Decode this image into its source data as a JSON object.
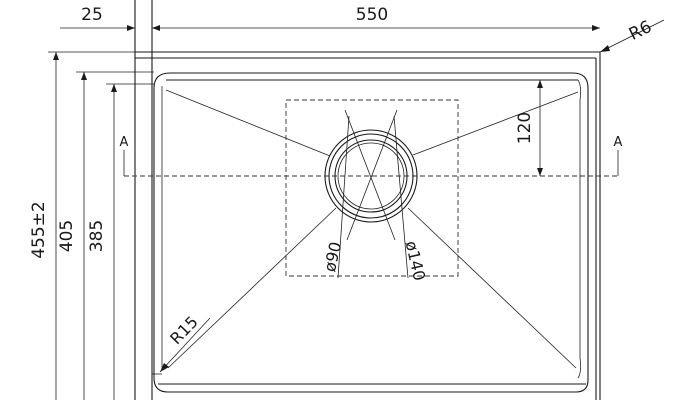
{
  "drawing": {
    "dimensions": {
      "offset_width": "25",
      "bowl_width": "550",
      "corner_radius_top": "R6",
      "overall_depth": "455±2",
      "rim_depth": "405",
      "bowl_depth": "385",
      "drain_offset": "120",
      "bowl_corner_radius": "R15",
      "inner_drain_diameter": "ø90",
      "outer_drain_diameter": "ø140"
    },
    "section_marker_left": "A",
    "section_marker_right": "A"
  }
}
